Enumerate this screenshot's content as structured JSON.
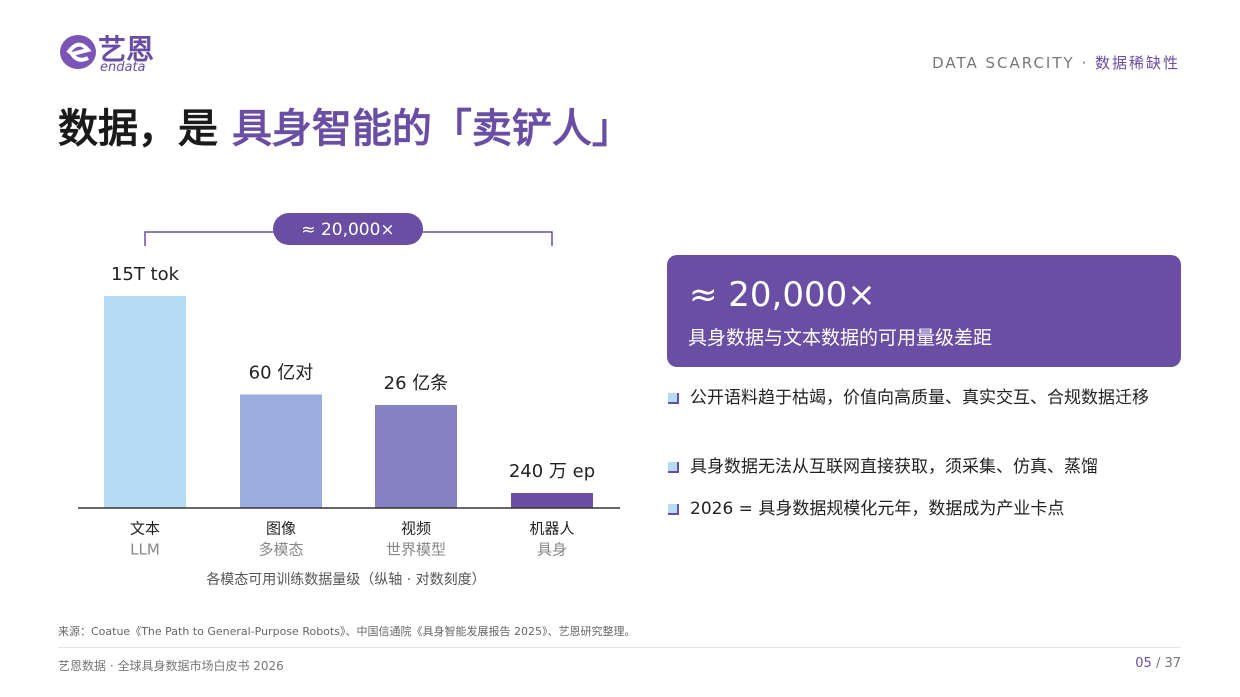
{
  "logo": {
    "name": "艺恩",
    "sub": "endata"
  },
  "header": {
    "tag": "DATA SCARCITY · ",
    "tag_cn": "数据稀缺性",
    "title": "数据，是 ",
    "title_highlight": "具身智能的「卖铲人」"
  },
  "chart_data": {
    "type": "bar",
    "yscale": "log",
    "categories": [
      "文本",
      "图像",
      "视频",
      "机器人"
    ],
    "category_sublabels": [
      "LLM",
      "多模态",
      "世界模型",
      "具身"
    ],
    "values": [
      15000000000000,
      6000000000,
      2600000000,
      2400000
    ],
    "value_labels": [
      "15T tok",
      "60 亿对",
      "26 亿条",
      "240 万 ep"
    ],
    "colors": [
      "#b5dcf4",
      "#9badde",
      "#8480c2",
      "#6a4ea4"
    ],
    "annotation": "≈ 20,000×",
    "x_label": "各模态可用训练数据量级（纵轴 · 对数刻度）"
  },
  "panel": {
    "headline": "≈ 20,000×",
    "subtitle": "具身数据与文本数据的可用量级差距",
    "bullets": [
      "公开语料趋于枯竭，价值向高质量、真实交互、合规数据迁移",
      "具身数据无法从互联网直接获取，须采集、仿真、蒸馏",
      "2026 = 具身数据规模化元年，数据成为产业卡点"
    ]
  },
  "source": "来源：Coatue《The Path to General-Purpose Robots》、中国信通院《具身智能发展报告 2025》、艺恩研究整理。",
  "footer": {
    "left": "艺恩数据 · 全球具身数据市场白皮书 2026",
    "page": "05",
    "total": " / 37"
  }
}
